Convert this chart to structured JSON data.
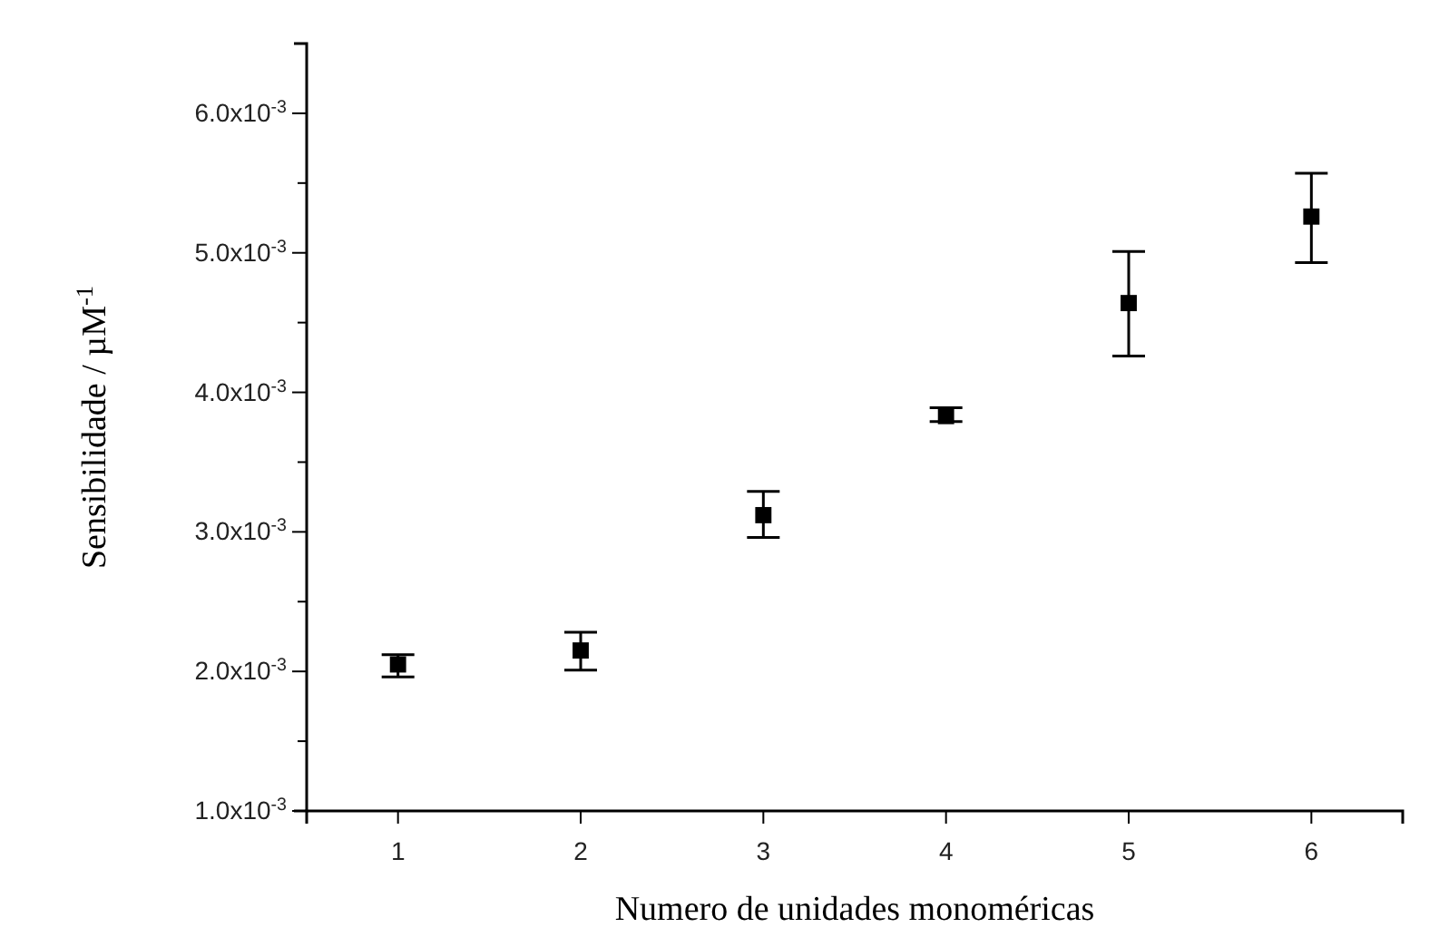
{
  "chart_data": {
    "type": "scatter",
    "xlabel": "Numero de unidades monoméricas",
    "ylabel": "Sensibilidade / µM$^{-1}$",
    "x": [
      1,
      2,
      3,
      4,
      5,
      6
    ],
    "values": [
      0.00205,
      0.00215,
      0.00312,
      0.00383,
      0.00464,
      0.00526
    ],
    "errors": [
      [
        0.00196,
        0.00212
      ],
      [
        0.00201,
        0.00228
      ],
      [
        0.00296,
        0.00329
      ],
      [
        0.00379,
        0.00389
      ],
      [
        0.00426,
        0.00501
      ],
      [
        0.00493,
        0.00557
      ]
    ],
    "color": "#000000",
    "marker": "square",
    "xlim": [
      0.5,
      6.5
    ],
    "xticks": [
      1,
      2,
      3,
      4,
      5,
      6
    ],
    "ylim": [
      0.001,
      0.0065
    ],
    "yticks": [
      {
        "value": 0.001,
        "label": "1.0x10$^{-3}$"
      },
      {
        "value": 0.0015,
        "label": null
      },
      {
        "value": 0.002,
        "label": "2.0x10$^{-3}$"
      },
      {
        "value": 0.0025,
        "label": null
      },
      {
        "value": 0.003,
        "label": "3.0x10$^{-3}$"
      },
      {
        "value": 0.0035,
        "label": null
      },
      {
        "value": 0.004,
        "label": "4.0x10$^{-3}$"
      },
      {
        "value": 0.0045,
        "label": null
      },
      {
        "value": 0.005,
        "label": "5.0x10$^{-3}$"
      },
      {
        "value": 0.0055,
        "label": null
      },
      {
        "value": 0.006,
        "label": "6.0x10$^{-3}$"
      }
    ],
    "grid": false
  }
}
